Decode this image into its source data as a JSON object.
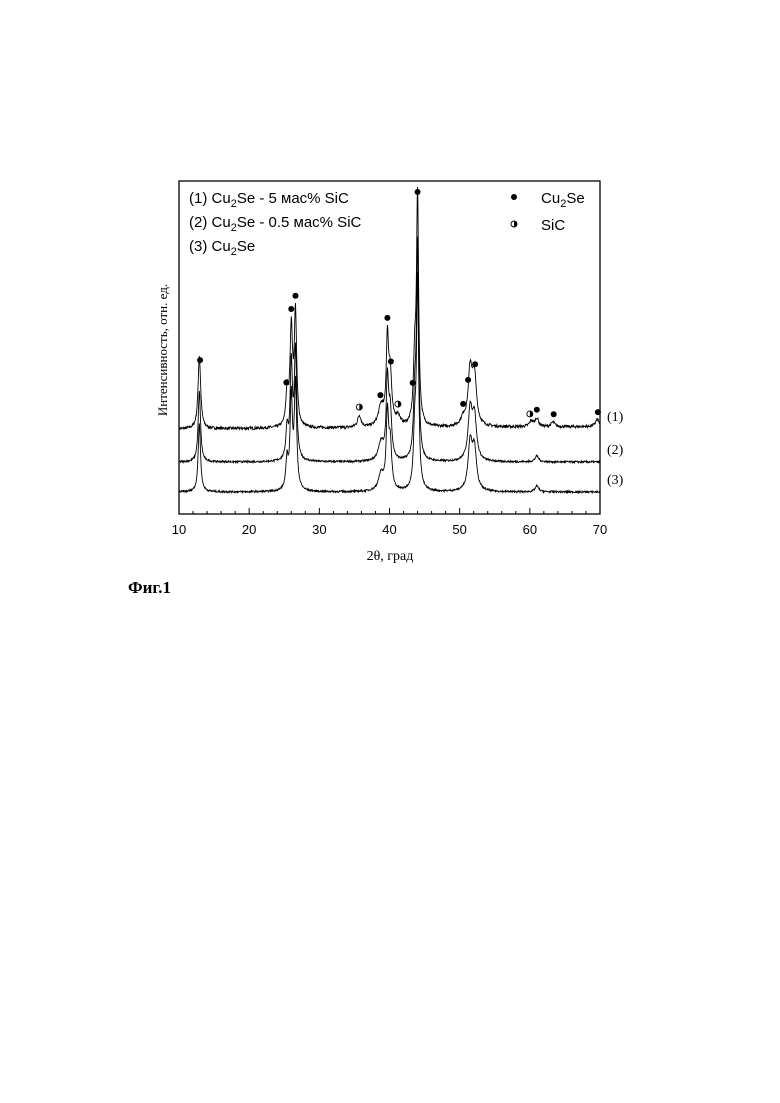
{
  "caption": "Фиг.1",
  "chart_data": {
    "type": "line",
    "title": "",
    "xlabel": "2θ, град",
    "ylabel": "Интенсивность, отн. ед.",
    "xlim": [
      10,
      70
    ],
    "xticks": [
      10,
      20,
      30,
      40,
      50,
      60,
      70
    ],
    "y_tick_labels": "none",
    "legend": {
      "samples": [
        {
          "id": "(1)",
          "formula": "Cu",
          "sub": "2",
          "rest": "Se - 5 мас% SiC"
        },
        {
          "id": "(2)",
          "formula": "Cu",
          "sub": "2",
          "rest": "Se - 0.5 мас% SiC"
        },
        {
          "id": "(3)",
          "formula": "Cu",
          "sub": "2",
          "rest": "Se"
        }
      ],
      "phases": [
        {
          "marker": "filled-circle",
          "formula": "Cu",
          "sub": "2",
          "rest": "Se"
        },
        {
          "marker": "half-circle",
          "formula": "SiC",
          "sub": "",
          "rest": ""
        }
      ],
      "placement": "top"
    },
    "series": [
      {
        "name": "(1)",
        "baseline": 0.08,
        "noise": 0.012,
        "peaks": [
          {
            "x": 12.9,
            "h": 0.62,
            "w": 0.22
          },
          {
            "x": 25.4,
            "h": 0.28,
            "w": 0.2
          },
          {
            "x": 26.0,
            "h": 0.82,
            "w": 0.22
          },
          {
            "x": 26.6,
            "h": 0.95,
            "w": 0.2
          },
          {
            "x": 35.7,
            "h": 0.1,
            "w": 0.3
          },
          {
            "x": 38.8,
            "h": 0.17,
            "w": 0.45
          },
          {
            "x": 39.7,
            "h": 0.7,
            "w": 0.2
          },
          {
            "x": 40.1,
            "h": 0.42,
            "w": 0.25
          },
          {
            "x": 41.2,
            "h": 0.08,
            "w": 0.4
          },
          {
            "x": 43.6,
            "h": 0.52,
            "w": 0.22
          },
          {
            "x": 44.0,
            "h": 1.92,
            "w": 0.18
          },
          {
            "x": 50.5,
            "h": 0.06,
            "w": 0.4
          },
          {
            "x": 51.5,
            "h": 0.46,
            "w": 0.35
          },
          {
            "x": 52.1,
            "h": 0.4,
            "w": 0.35
          },
          {
            "x": 60.2,
            "h": 0.05,
            "w": 0.3
          },
          {
            "x": 61.0,
            "h": 0.07,
            "w": 0.3
          },
          {
            "x": 63.3,
            "h": 0.04,
            "w": 0.3
          },
          {
            "x": 69.6,
            "h": 0.06,
            "w": 0.3
          }
        ]
      },
      {
        "name": "(2)",
        "baseline": 0.0,
        "noise": 0.008,
        "peaks": [
          {
            "x": 12.9,
            "h": 0.6,
            "w": 0.2
          },
          {
            "x": 25.4,
            "h": 0.26,
            "w": 0.2
          },
          {
            "x": 26.0,
            "h": 0.8,
            "w": 0.2
          },
          {
            "x": 26.6,
            "h": 0.92,
            "w": 0.2
          },
          {
            "x": 38.8,
            "h": 0.15,
            "w": 0.45
          },
          {
            "x": 39.7,
            "h": 0.65,
            "w": 0.2
          },
          {
            "x": 40.1,
            "h": 0.4,
            "w": 0.25
          },
          {
            "x": 43.6,
            "h": 0.48,
            "w": 0.22
          },
          {
            "x": 44.0,
            "h": 1.8,
            "w": 0.18
          },
          {
            "x": 51.5,
            "h": 0.42,
            "w": 0.35
          },
          {
            "x": 52.1,
            "h": 0.36,
            "w": 0.35
          },
          {
            "x": 61.0,
            "h": 0.05,
            "w": 0.3
          }
        ]
      },
      {
        "name": "(3)",
        "baseline": 0.0,
        "noise": 0.008,
        "peaks": [
          {
            "x": 12.9,
            "h": 0.58,
            "w": 0.2
          },
          {
            "x": 25.4,
            "h": 0.25,
            "w": 0.2
          },
          {
            "x": 26.0,
            "h": 0.78,
            "w": 0.2
          },
          {
            "x": 26.6,
            "h": 0.9,
            "w": 0.2
          },
          {
            "x": 38.8,
            "h": 0.14,
            "w": 0.45
          },
          {
            "x": 39.7,
            "h": 0.62,
            "w": 0.2
          },
          {
            "x": 40.1,
            "h": 0.38,
            "w": 0.25
          },
          {
            "x": 43.6,
            "h": 0.46,
            "w": 0.22
          },
          {
            "x": 44.0,
            "h": 1.75,
            "w": 0.18
          },
          {
            "x": 51.5,
            "h": 0.4,
            "w": 0.35
          },
          {
            "x": 52.1,
            "h": 0.34,
            "w": 0.35
          },
          {
            "x": 61.0,
            "h": 0.05,
            "w": 0.3
          }
        ]
      }
    ],
    "phase_markers": [
      {
        "phase": "Cu2Se",
        "x": 13.0
      },
      {
        "phase": "Cu2Se",
        "x": 25.3
      },
      {
        "phase": "Cu2Se",
        "x": 26.0
      },
      {
        "phase": "Cu2Se",
        "x": 26.6
      },
      {
        "phase": "SiC",
        "x": 35.7
      },
      {
        "phase": "Cu2Se",
        "x": 38.7
      },
      {
        "phase": "Cu2Se",
        "x": 39.7
      },
      {
        "phase": "Cu2Se",
        "x": 40.2
      },
      {
        "phase": "SiC",
        "x": 41.2
      },
      {
        "phase": "Cu2Se",
        "x": 43.3
      },
      {
        "phase": "Cu2Se",
        "x": 44.0
      },
      {
        "phase": "Cu2Se",
        "x": 50.5
      },
      {
        "phase": "Cu2Se",
        "x": 51.2
      },
      {
        "phase": "Cu2Se",
        "x": 52.2
      },
      {
        "phase": "SiC",
        "x": 60.0
      },
      {
        "phase": "Cu2Se",
        "x": 61.0
      },
      {
        "phase": "Cu2Se",
        "x": 63.4
      },
      {
        "phase": "Cu2Se",
        "x": 69.7
      }
    ]
  }
}
